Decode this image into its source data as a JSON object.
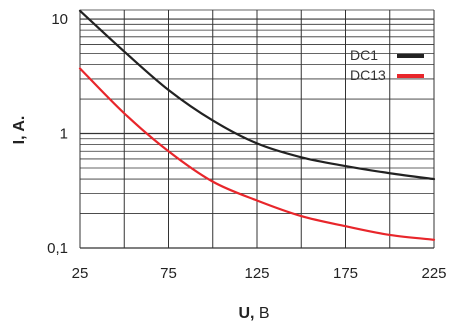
{
  "chart_data": {
    "type": "line",
    "title": "",
    "xlabel_bold": "U,",
    "xlabel_rest": " B",
    "ylabel": "I, A.",
    "x_ticks": [
      "25",
      "75",
      "125",
      "175",
      "225"
    ],
    "y_ticks": [
      "10",
      "1",
      "0,1"
    ],
    "xlim": [
      25,
      225
    ],
    "ylim": [
      0.1,
      12
    ],
    "yscale": "log",
    "grid": true,
    "legend_position": "top-right",
    "series": [
      {
        "name": "DC1",
        "color": "#222222",
        "x": [
          25,
          50,
          75,
          100,
          125,
          150,
          175,
          200,
          225
        ],
        "y": [
          11.8,
          5.2,
          2.4,
          1.3,
          0.82,
          0.62,
          0.52,
          0.45,
          0.4
        ]
      },
      {
        "name": "DC13",
        "color": "#e8262b",
        "x": [
          25,
          50,
          75,
          100,
          125,
          150,
          175,
          200,
          225
        ],
        "y": [
          3.7,
          1.5,
          0.7,
          0.38,
          0.26,
          0.19,
          0.155,
          0.13,
          0.118
        ]
      }
    ]
  }
}
